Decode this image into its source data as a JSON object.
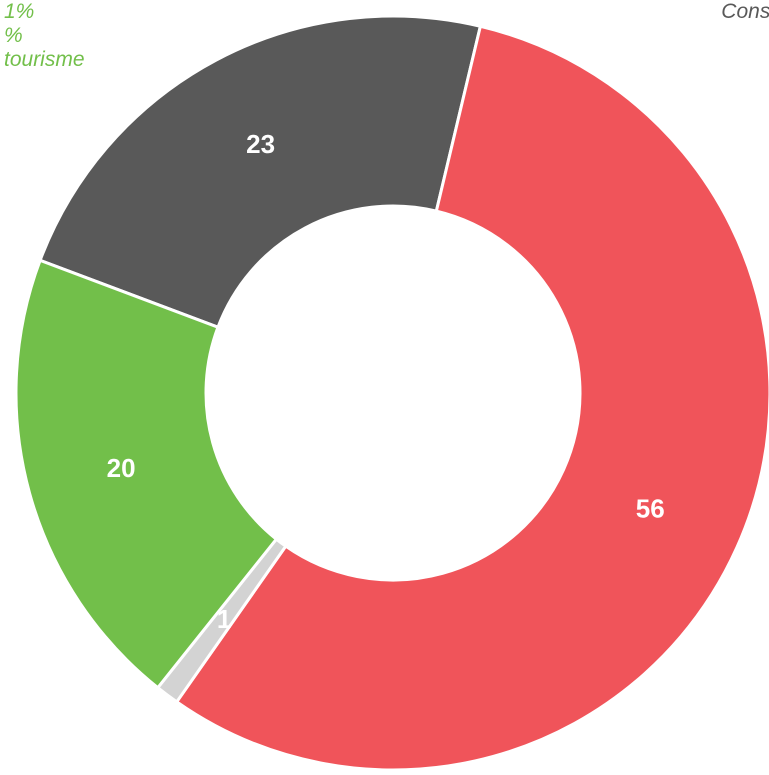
{
  "chart_data": {
    "type": "pie",
    "variant": "donut",
    "title": "",
    "slices": [
      {
        "value": 23,
        "label": "23",
        "color": "#595959"
      },
      {
        "value": 56,
        "label": "56",
        "color": "#f0545a"
      },
      {
        "value": 1,
        "label": "1",
        "color": "#d3d3d3"
      },
      {
        "value": 20,
        "label": "20",
        "color": "#72bf4a"
      }
    ],
    "annotations": {
      "left": {
        "lines": [
          "1%",
          "%",
          "tourisme"
        ],
        "color": "#72bf4a"
      },
      "right": {
        "text": "Consi",
        "color": "#595959"
      }
    },
    "legend": "none"
  }
}
